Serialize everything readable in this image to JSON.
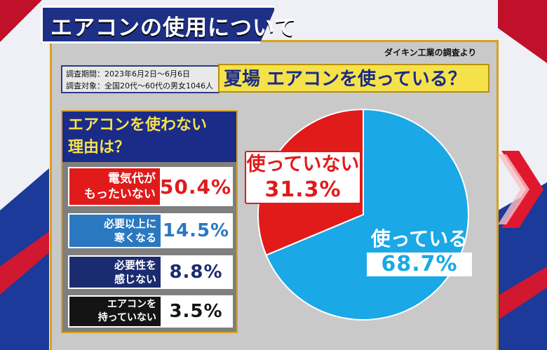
{
  "title": "エアコンの使用について",
  "source": "ダイキン工業の調査より",
  "survey": {
    "period": "調査期間：2023年6月2日～6月6日",
    "target": "調査対象：全国20代～60代の男女1046人"
  },
  "question": "夏場 エアコンを使っている？",
  "reasons": {
    "title_line1": "エアコンを使わない",
    "title_line2": "理由は？",
    "items": [
      {
        "label_line1": "電気代が",
        "label_line2": "もったいない",
        "value": "50.4%",
        "bg": "#e11a1a",
        "fg": "#e11a1a"
      },
      {
        "label_line1": "必要以上に",
        "label_line2": "寒くなる",
        "value": "14.5%",
        "bg": "#2a78c0",
        "fg": "#2a78c0"
      },
      {
        "label_line1": "必要性を",
        "label_line2": "感じない",
        "value": "8.8%",
        "bg": "#1b2b6f",
        "fg": "#1b2b6f"
      },
      {
        "label_line1": "エアコンを",
        "label_line2": "持っていない",
        "value": "3.5%",
        "bg": "#141414",
        "fg": "#141414"
      }
    ]
  },
  "chart_data": {
    "type": "pie",
    "title": "夏場 エアコンを使っている？",
    "slices": [
      {
        "label": "使っていない",
        "value": 31.3,
        "display": "31.3%",
        "color": "#e11a1a"
      },
      {
        "label": "使っている",
        "value": 68.7,
        "display": "68.7%",
        "color": "#1aa8e6"
      }
    ]
  }
}
